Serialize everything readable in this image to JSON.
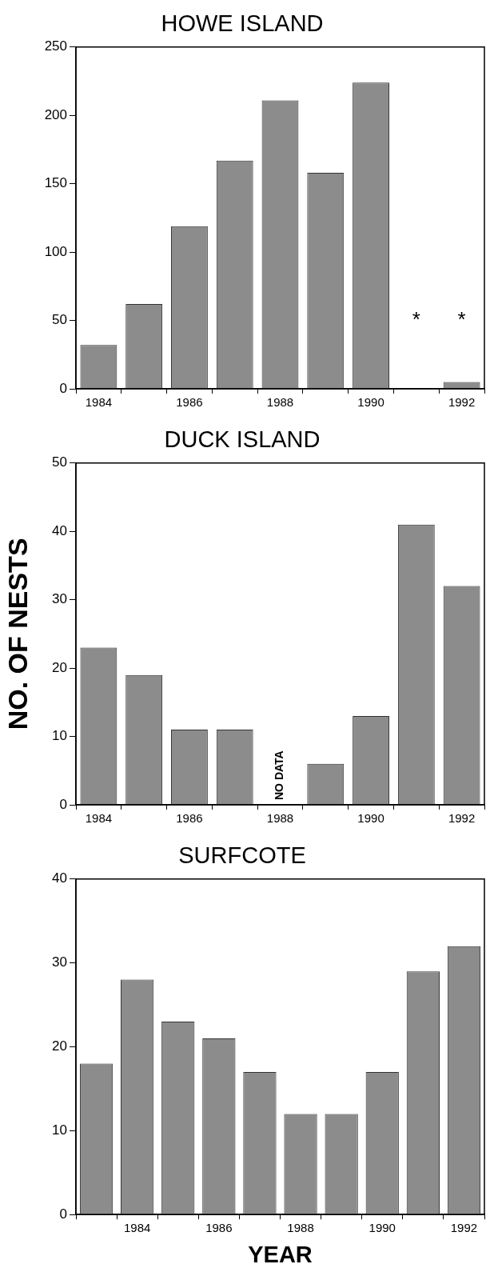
{
  "chart_data": [
    {
      "type": "bar",
      "title": "HOWE ISLAND",
      "categories": [
        "1984",
        null,
        "1986",
        null,
        "1988",
        null,
        "1990",
        null,
        "1992"
      ],
      "color": "#8c8c8c",
      "values": [
        32,
        62,
        119,
        167,
        211,
        158,
        224,
        null,
        5
      ],
      "value_labels": [
        null,
        null,
        null,
        null,
        null,
        null,
        null,
        "*",
        "*"
      ],
      "ylim": [
        0,
        250
      ],
      "yticks": [
        0,
        50,
        100,
        150,
        200,
        250
      ],
      "grid": false,
      "legend": false
    },
    {
      "type": "bar",
      "title": "DUCK ISLAND",
      "ylabel": "NO. OF NESTS",
      "categories": [
        "1984",
        null,
        "1986",
        null,
        "1988",
        null,
        "1990",
        null,
        "1992"
      ],
      "color": "#8c8c8c",
      "values": [
        23,
        19,
        11,
        11,
        null,
        6,
        13,
        41,
        32
      ],
      "value_labels": [
        null,
        null,
        null,
        null,
        "NO DATA",
        null,
        null,
        null,
        null
      ],
      "ylim": [
        0,
        50
      ],
      "yticks": [
        0,
        10,
        20,
        30,
        40,
        50
      ],
      "grid": false,
      "legend": false
    },
    {
      "type": "bar",
      "title": "SURFCOTE",
      "xlabel": "YEAR",
      "categories": [
        null,
        "1984",
        null,
        "1986",
        null,
        "1988",
        null,
        "1990",
        null,
        "1992"
      ],
      "color": "#8c8c8c",
      "values": [
        18,
        28,
        23,
        21,
        17,
        12,
        12,
        17,
        29,
        32
      ],
      "ylim": [
        0,
        40
      ],
      "yticks": [
        0,
        10,
        20,
        30,
        40
      ],
      "grid": false,
      "legend": false
    }
  ]
}
